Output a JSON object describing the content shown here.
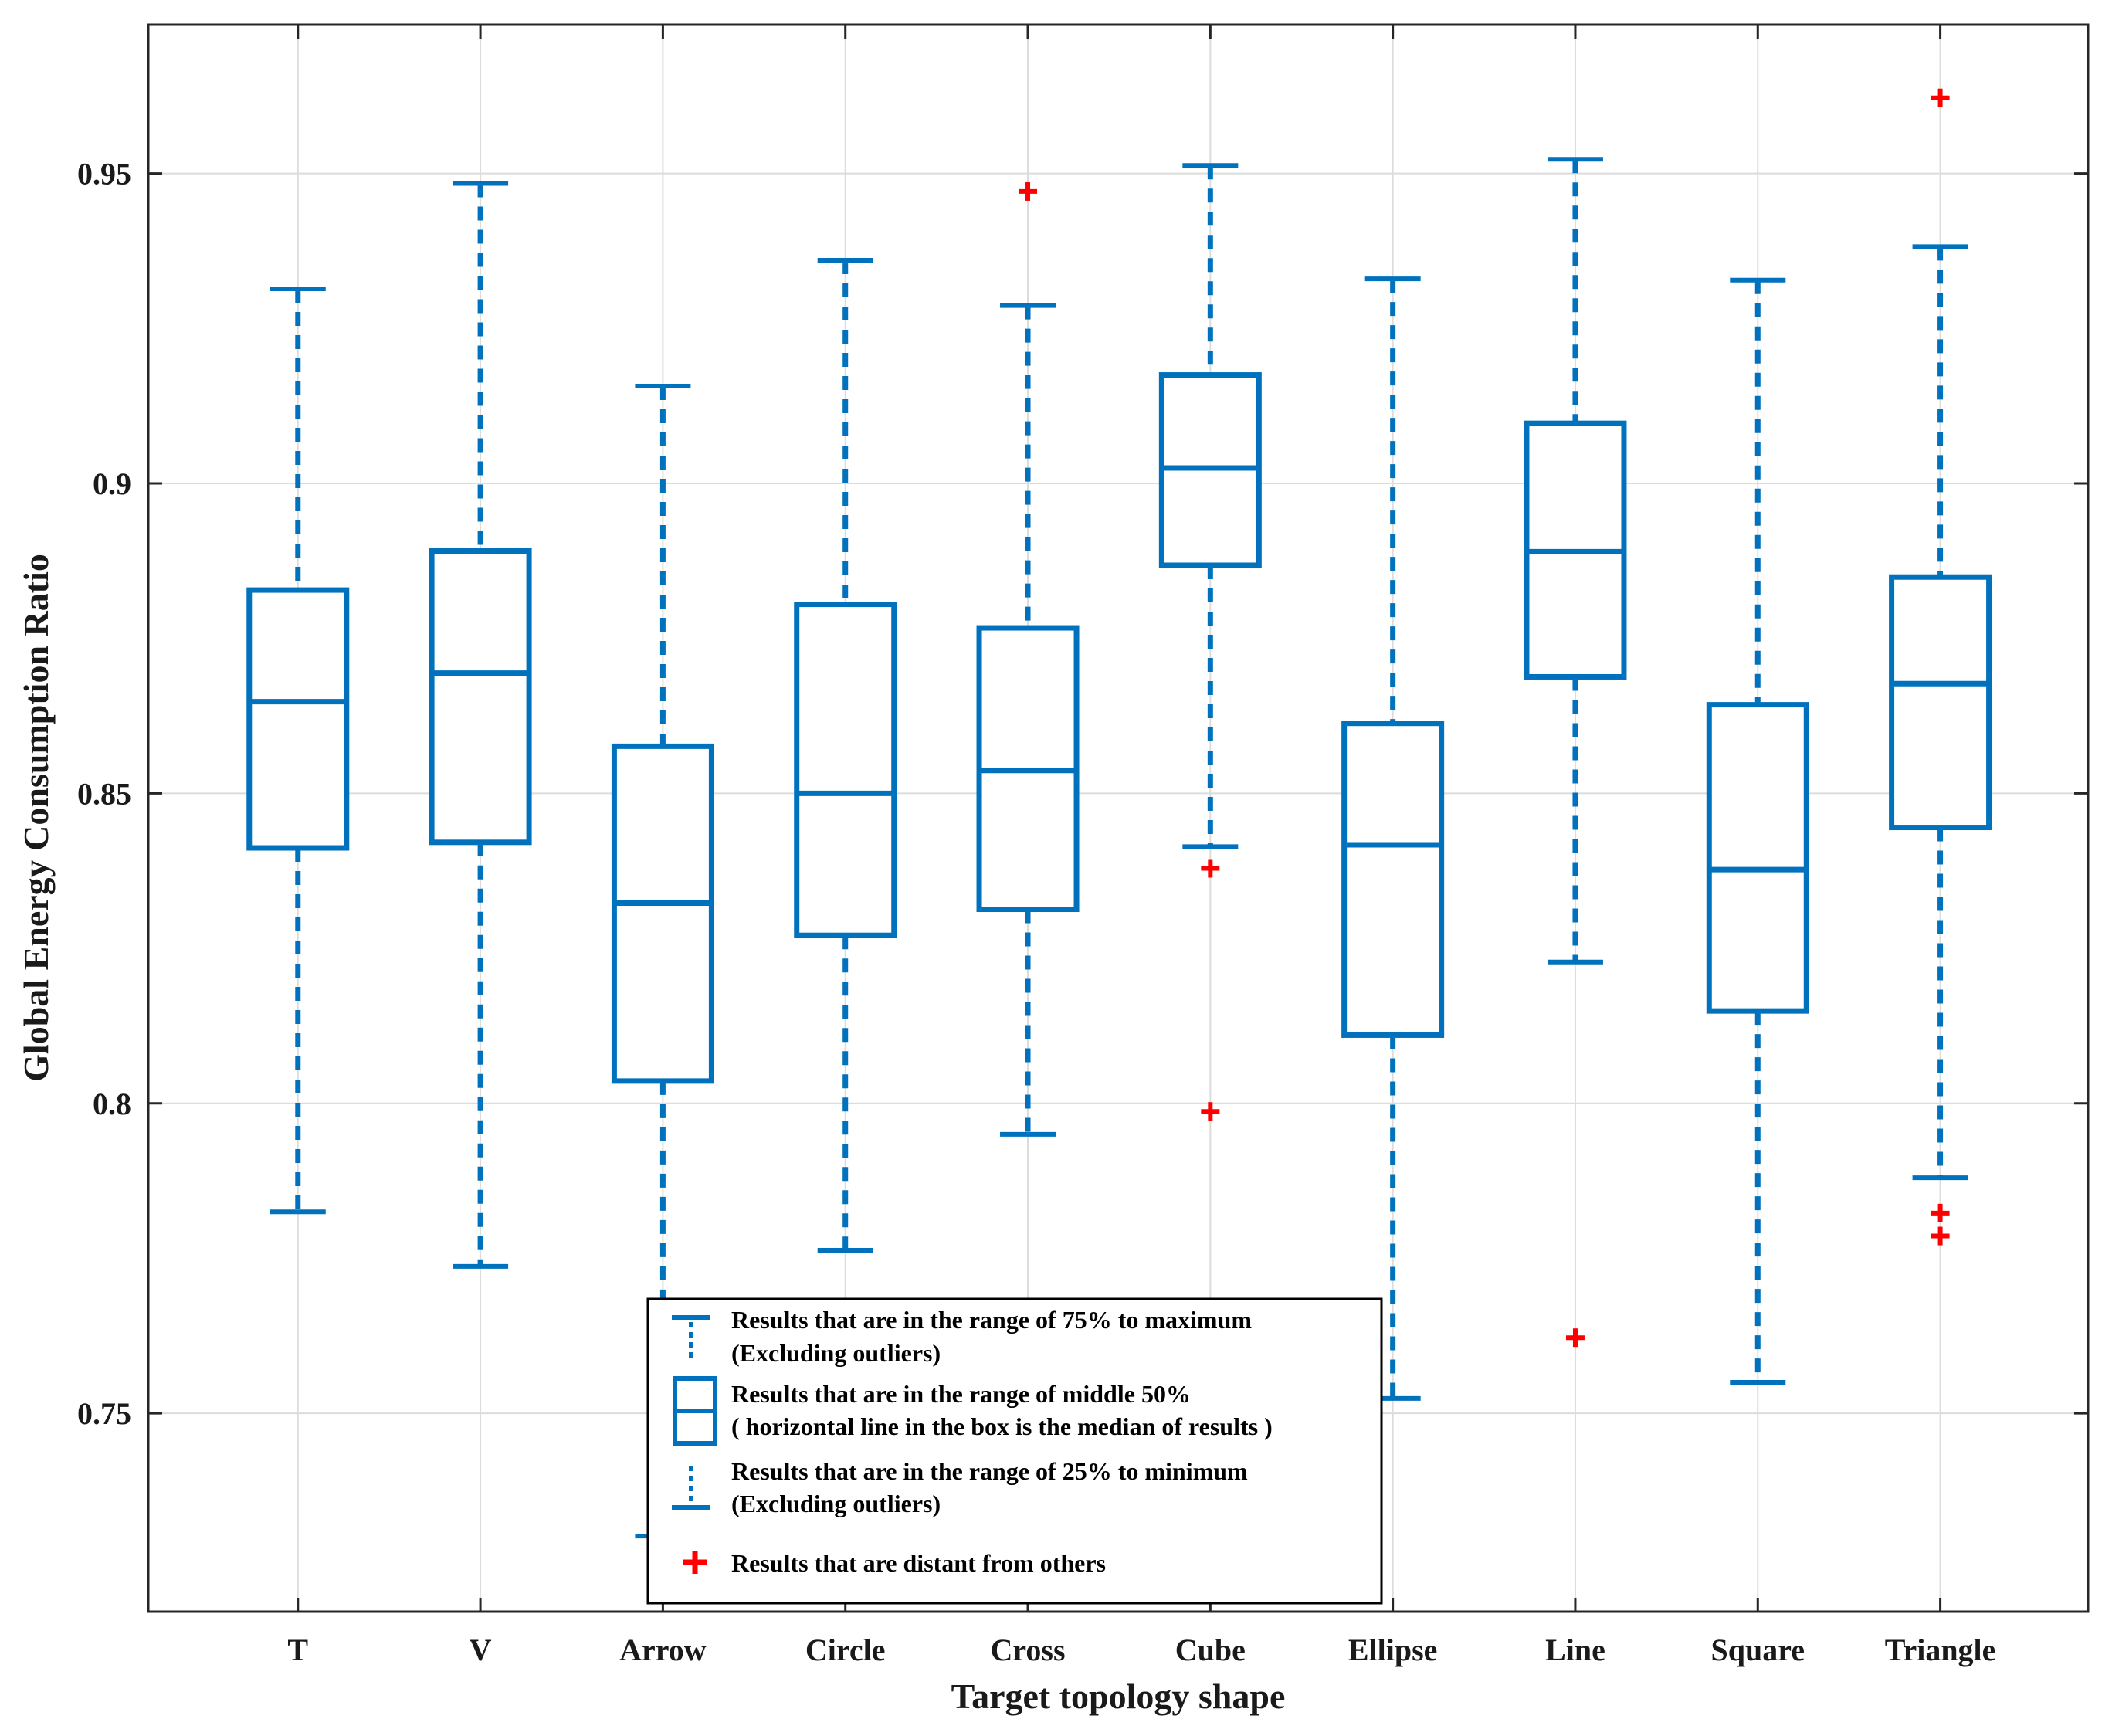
{
  "chart_data": {
    "type": "boxplot",
    "title": "",
    "xlabel": "Target topology shape",
    "ylabel": "Global Energy Consumption Ratio",
    "ylim": [
      0.718,
      0.974
    ],
    "yticks": [
      0.75,
      0.8,
      0.85,
      0.9,
      0.95
    ],
    "ytick_labels": [
      "0.75",
      "0.8",
      "0.85",
      "0.9",
      "0.95"
    ],
    "grid": true,
    "colors": {
      "box": "#0072bd",
      "outlier": "#ff0000",
      "grid": "#dcdcdc",
      "axis": "#262626"
    },
    "categories": [
      "T",
      "V",
      "Arrow",
      "Circle",
      "Cross",
      "Cube",
      "Ellipse",
      "Line",
      "Square",
      "Triangle"
    ],
    "series": [
      {
        "name": "T",
        "min": 0.7825,
        "q1": 0.8412,
        "median": 0.8648,
        "q3": 0.8828,
        "max": 0.9314,
        "outliers": []
      },
      {
        "name": "V",
        "min": 0.7737,
        "q1": 0.8421,
        "median": 0.8694,
        "q3": 0.8891,
        "max": 0.9484,
        "outliers": []
      },
      {
        "name": "Arrow",
        "min": 0.7302,
        "q1": 0.8036,
        "median": 0.8323,
        "q3": 0.8576,
        "max": 0.9157,
        "outliers": []
      },
      {
        "name": "Circle",
        "min": 0.7763,
        "q1": 0.8271,
        "median": 0.85,
        "q3": 0.8805,
        "max": 0.936,
        "outliers": []
      },
      {
        "name": "Cross",
        "min": 0.795,
        "q1": 0.8313,
        "median": 0.8537,
        "q3": 0.8767,
        "max": 0.9287,
        "outliers": [
          0.9471
        ]
      },
      {
        "name": "Cube",
        "min": 0.8414,
        "q1": 0.8868,
        "median": 0.9025,
        "q3": 0.9175,
        "max": 0.9513,
        "outliers": [
          0.8379,
          0.7987
        ]
      },
      {
        "name": "Ellipse",
        "min": 0.7524,
        "q1": 0.811,
        "median": 0.8417,
        "q3": 0.8613,
        "max": 0.933,
        "outliers": []
      },
      {
        "name": "Line",
        "min": 0.8228,
        "q1": 0.8688,
        "median": 0.889,
        "q3": 0.9097,
        "max": 0.9523,
        "outliers": [
          0.7622
        ]
      },
      {
        "name": "Square",
        "min": 0.755,
        "q1": 0.8149,
        "median": 0.8377,
        "q3": 0.8643,
        "max": 0.9328,
        "outliers": []
      },
      {
        "name": "Triangle",
        "min": 0.788,
        "q1": 0.8445,
        "median": 0.8677,
        "q3": 0.8849,
        "max": 0.9382,
        "outliers": [
          0.9622,
          0.7823,
          0.7786
        ]
      }
    ],
    "legend": {
      "position": "bottom-center",
      "items": [
        {
          "symbol": "upper-whisker",
          "line1": "Results that are in the range of 75% to maximum",
          "line2": "(Excluding outliers)"
        },
        {
          "symbol": "box",
          "line1": "Results that are in the range of middle 50%",
          "line2": "( horizontal line in the box is the median of results )"
        },
        {
          "symbol": "lower-whisker",
          "line1": "Results that are in the range of 25% to minimum",
          "line2": "(Excluding outliers)"
        },
        {
          "symbol": "outlier",
          "line1": "Results  that are distant from others",
          "line2": ""
        }
      ]
    }
  }
}
